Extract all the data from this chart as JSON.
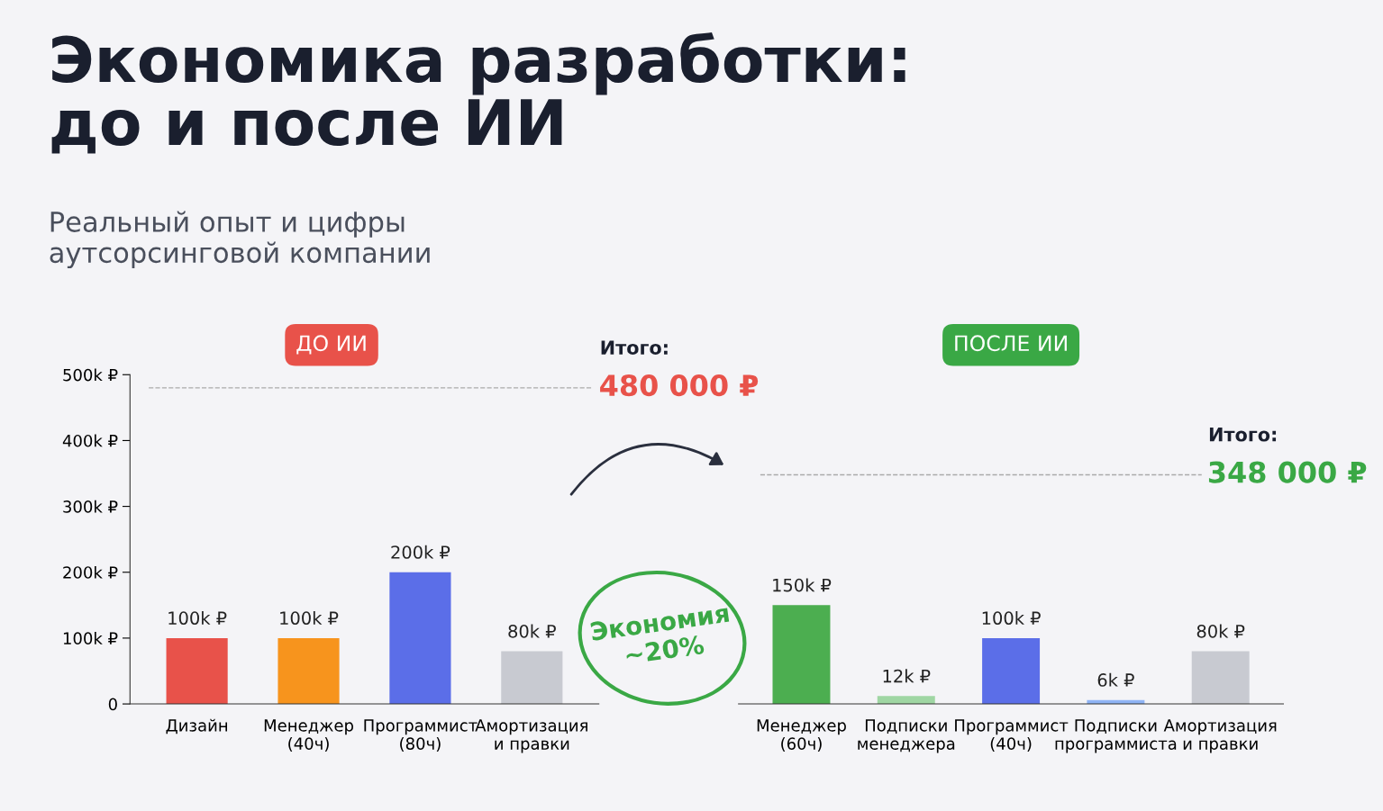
{
  "chart_data": [
    {
      "type": "bar",
      "title": "Экономика разработки:\nдо и после ИИ",
      "subtitle": "Реальный опыт и цифры\nаутсорсинговой компании",
      "legend_title": "ДО ИИ",
      "categories": [
        "Дизайн",
        "Менеджер\n(40ч)",
        "Программист\n(80ч)",
        "Амортизация\nи правки"
      ],
      "values": [
        100000,
        100000,
        200000,
        80000
      ],
      "colors": [
        "#e8524a",
        "#f7941d",
        "#5b6ee8",
        "#c8cad1"
      ],
      "value_labels": [
        "100k ₽",
        "100k ₽",
        "200k ₽",
        "80k ₽"
      ],
      "ylim": [
        0,
        500000
      ],
      "yticks": [
        {
          "value": 0,
          "label": "0"
        },
        {
          "value": 100000,
          "label": "100k ₽"
        },
        {
          "value": 200000,
          "label": "200k ₽"
        },
        {
          "value": 300000,
          "label": "300k ₽"
        },
        {
          "value": 400000,
          "label": "400k ₽"
        },
        {
          "value": 500000,
          "label": "500k ₽"
        }
      ],
      "ref_lines": [
        {
          "axis": "y",
          "value": 480000,
          "label": "Итого:\n480 000 ₽",
          "color": "#aaaaaa",
          "line_style": "dashed"
        }
      ],
      "grid": false
    },
    {
      "type": "bar",
      "legend_title": "ПОСЛЕ ИИ",
      "categories": [
        "Менеджер\n(60ч)",
        "Подписки\nменеджера",
        "Программист\n(40ч)",
        "Подписки\nпрограммиста",
        "Амортизация\nи правки"
      ],
      "values": [
        150000,
        12000,
        100000,
        6000,
        80000
      ],
      "colors": [
        "#4cae50",
        "#9fd6a3",
        "#5b6ee8",
        "#8fb4f5",
        "#c8cad1"
      ],
      "value_labels": [
        "150k ₽",
        "12k ₽",
        "100k ₽",
        "6k ₽",
        "80k ₽"
      ],
      "ylim": [
        0,
        500000
      ],
      "tick_labels": "x",
      "ref_lines": [
        {
          "axis": "y",
          "value": 348000,
          "label": "Итого:\n348 000 ₽",
          "color": "#aaaaaa",
          "line_style": "dashed"
        }
      ],
      "annotations": [
        "Экономия\n~20%"
      ],
      "grid": false
    }
  ]
}
